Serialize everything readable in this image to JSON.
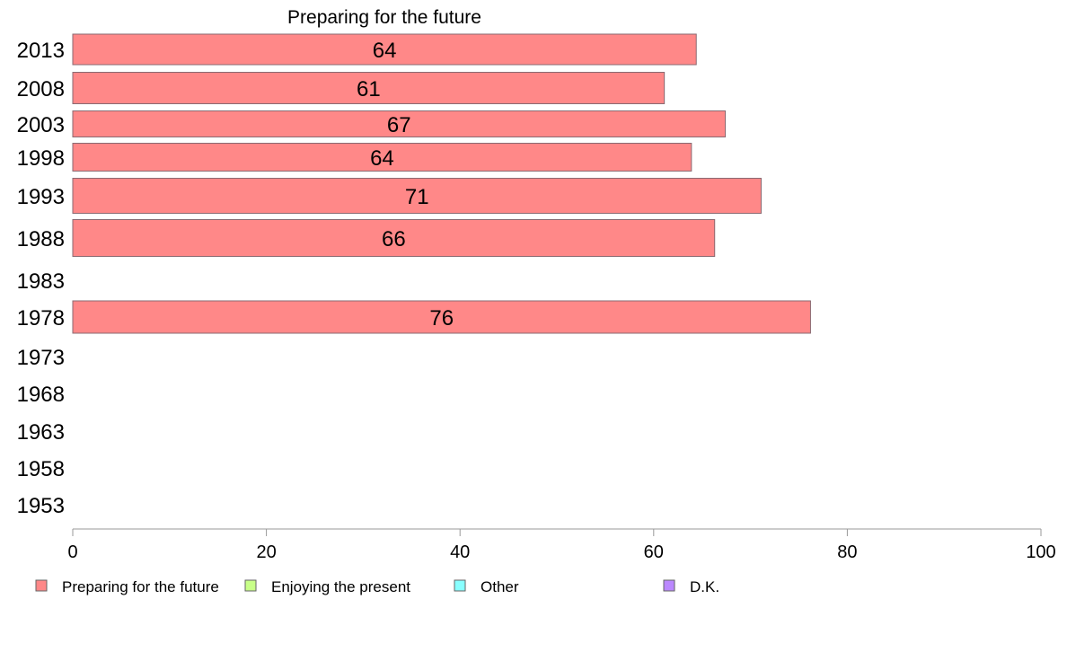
{
  "chart_data": {
    "type": "bar",
    "orientation": "horizontal",
    "title": "Preparing for the future",
    "categories": [
      "2013",
      "2008",
      "2003",
      "1998",
      "1993",
      "1988",
      "1983",
      "1978",
      "1973",
      "1968",
      "1963",
      "1958",
      "1953"
    ],
    "series": [
      {
        "name": "Preparing for the future",
        "color": "#ff8888",
        "values": [
          64.4,
          61.1,
          67.4,
          63.9,
          71.1,
          66.3,
          null,
          76.2,
          null,
          null,
          null,
          null,
          null
        ],
        "labels": [
          "64",
          "61",
          "67",
          "64",
          "71",
          "66",
          "",
          "76",
          "",
          "",
          "",
          "",
          ""
        ]
      }
    ],
    "xlim": [
      0,
      100
    ],
    "xticks": [
      "0",
      "20",
      "40",
      "60",
      "80",
      "100"
    ],
    "grid": false,
    "legend": {
      "placement": "bottom",
      "items": [
        {
          "label": "Preparing for the future",
          "color": "#ff8888"
        },
        {
          "label": "Enjoying the present",
          "color": "#c8ff88"
        },
        {
          "label": "Other",
          "color": "#88ffff"
        },
        {
          "label": "D.K.",
          "color": "#bb88ff"
        }
      ]
    }
  }
}
